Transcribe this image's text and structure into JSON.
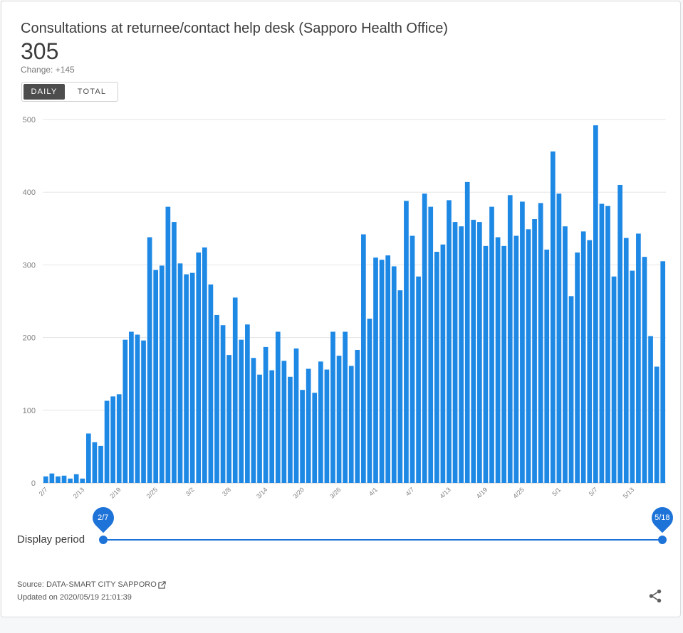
{
  "header": {
    "title": "Consultations at returnee/contact help desk (Sapporo Health Office)",
    "value": "305",
    "change": "Change: +145"
  },
  "toggle": {
    "daily_label": "DAILY",
    "total_label": "TOTAL"
  },
  "period": {
    "label": "Display period",
    "start": "2/7",
    "end": "5/18"
  },
  "footer": {
    "source": "Source: DATA-SMART CITY SAPPORO",
    "updated": "Updated on 2020/05/19 21:01:39"
  },
  "colors": {
    "bar": "#1e88e5",
    "accent": "#1e73d8"
  },
  "icons": {
    "external": "external-link-icon",
    "share": "share-icon"
  },
  "chart_data": {
    "type": "bar",
    "ylim": [
      0,
      500
    ],
    "y_ticks": [
      0,
      100,
      200,
      300,
      400,
      500
    ],
    "x_tick_labels": [
      "2/7",
      "2/13",
      "2/19",
      "2/25",
      "3/2",
      "3/8",
      "3/14",
      "3/20",
      "3/26",
      "4/1",
      "4/7",
      "4/13",
      "4/19",
      "4/25",
      "5/1",
      "5/7",
      "5/13"
    ],
    "x_tick_every": 6,
    "categories": [
      "2/7",
      "2/8",
      "2/9",
      "2/10",
      "2/11",
      "2/12",
      "2/13",
      "2/14",
      "2/15",
      "2/16",
      "2/17",
      "2/18",
      "2/19",
      "2/20",
      "2/21",
      "2/22",
      "2/23",
      "2/24",
      "2/25",
      "2/26",
      "2/27",
      "2/28",
      "2/29",
      "3/1",
      "3/2",
      "3/3",
      "3/4",
      "3/5",
      "3/6",
      "3/7",
      "3/8",
      "3/9",
      "3/10",
      "3/11",
      "3/12",
      "3/13",
      "3/14",
      "3/15",
      "3/16",
      "3/17",
      "3/18",
      "3/19",
      "3/20",
      "3/21",
      "3/22",
      "3/23",
      "3/24",
      "3/25",
      "3/26",
      "3/27",
      "3/28",
      "3/29",
      "3/30",
      "3/31",
      "4/1",
      "4/2",
      "4/3",
      "4/4",
      "4/5",
      "4/6",
      "4/7",
      "4/8",
      "4/9",
      "4/10",
      "4/11",
      "4/12",
      "4/13",
      "4/14",
      "4/15",
      "4/16",
      "4/17",
      "4/18",
      "4/19",
      "4/20",
      "4/21",
      "4/22",
      "4/23",
      "4/24",
      "4/25",
      "4/26",
      "4/27",
      "4/28",
      "4/29",
      "4/30",
      "5/1",
      "5/2",
      "5/3",
      "5/4",
      "5/5",
      "5/6",
      "5/7",
      "5/8",
      "5/9",
      "5/10",
      "5/11",
      "5/12",
      "5/13",
      "5/14",
      "5/15",
      "5/16",
      "5/17",
      "5/18"
    ],
    "values": [
      9,
      13,
      9,
      10,
      6,
      12,
      6,
      68,
      56,
      51,
      113,
      119,
      122,
      197,
      208,
      204,
      196,
      338,
      293,
      299,
      380,
      359,
      302,
      287,
      289,
      317,
      324,
      273,
      231,
      217,
      176,
      255,
      197,
      218,
      172,
      149,
      187,
      155,
      208,
      168,
      146,
      185,
      128,
      157,
      124,
      167,
      156,
      208,
      175,
      208,
      161,
      183,
      342,
      226,
      310,
      307,
      313,
      298,
      265,
      388,
      340,
      284,
      398,
      380,
      318,
      328,
      389,
      359,
      353,
      414,
      362,
      359,
      326,
      380,
      338,
      326,
      396,
      340,
      387,
      349,
      363,
      385,
      321,
      456,
      398,
      353,
      257,
      317,
      346,
      334,
      492,
      384,
      381,
      284,
      410,
      337,
      292,
      343,
      311,
      202,
      160,
      305
    ]
  }
}
